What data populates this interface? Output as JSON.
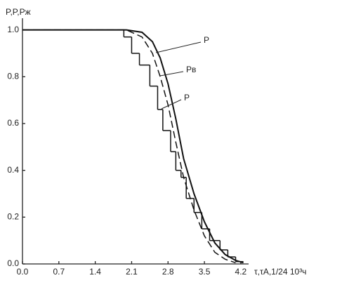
{
  "chart_data": {
    "type": "line",
    "y_label": "P,P,Pж",
    "x_label": "τ,τA,1/24 10³ч",
    "xlim": [
      0,
      4.35
    ],
    "ylim": [
      0,
      1.05
    ],
    "xticks": [
      {
        "value": 0,
        "label": "0.0"
      },
      0.7,
      1.4,
      2.1,
      2.8,
      3.5,
      4.2
    ],
    "yticks": [
      {
        "value": 0,
        "label": "0.0"
      },
      0.2,
      0.4,
      0.6,
      0.8,
      {
        "value": 1,
        "label": "1.0"
      }
    ],
    "series": [
      {
        "name": "P",
        "color": "#111",
        "style": "solid",
        "x": [
          0,
          2.0,
          2.3,
          2.5,
          2.65,
          2.8,
          2.95,
          3.1,
          3.3,
          3.5,
          3.7,
          3.9,
          4.1,
          4.25
        ],
        "values": [
          1.0,
          1.0,
          0.99,
          0.95,
          0.88,
          0.77,
          0.62,
          0.45,
          0.3,
          0.18,
          0.09,
          0.04,
          0.015,
          0.005
        ]
      },
      {
        "name": "Pв",
        "color": "#111",
        "style": "dashed",
        "x": [
          0,
          2.0,
          2.3,
          2.5,
          2.65,
          2.8,
          2.95,
          3.1,
          3.3,
          3.5,
          3.7,
          3.9,
          4.1
        ],
        "values": [
          1.0,
          1.0,
          0.97,
          0.9,
          0.8,
          0.68,
          0.52,
          0.37,
          0.23,
          0.12,
          0.05,
          0.02,
          0.005
        ]
      },
      {
        "name": "P",
        "color": "#111",
        "style": "step",
        "x": [
          0,
          1.95,
          2.1,
          2.25,
          2.45,
          2.6,
          2.7,
          2.85,
          2.95,
          3.05,
          3.15,
          3.3,
          3.45,
          3.6,
          3.8,
          3.95,
          4.1,
          4.25
        ],
        "values": [
          1.0,
          0.97,
          0.9,
          0.85,
          0.76,
          0.66,
          0.57,
          0.48,
          0.4,
          0.37,
          0.28,
          0.22,
          0.15,
          0.1,
          0.06,
          0.03,
          0.01,
          0.01
        ]
      }
    ]
  }
}
